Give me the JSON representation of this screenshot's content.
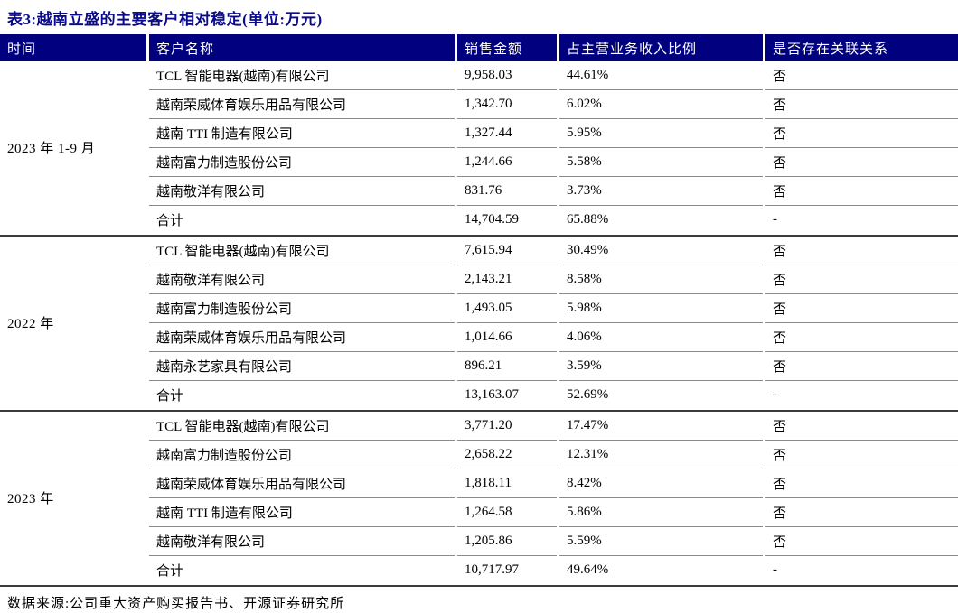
{
  "title": "表3:越南立盛的主要客户相对稳定(单位:万元)",
  "columns": [
    "时间",
    "客户名称",
    "销售金额",
    "占主营业务收入比例",
    "是否存在关联关系"
  ],
  "groups": [
    {
      "period": "2023 年 1-9 月",
      "rows": [
        {
          "customer": "TCL 智能电器(越南)有限公司",
          "amount": "9,958.03",
          "ratio": "44.61%",
          "related": "否"
        },
        {
          "customer": "越南荣威体育娱乐用品有限公司",
          "amount": "1,342.70",
          "ratio": "6.02%",
          "related": "否"
        },
        {
          "customer": "越南 TTI 制造有限公司",
          "amount": "1,327.44",
          "ratio": "5.95%",
          "related": "否"
        },
        {
          "customer": "越南富力制造股份公司",
          "amount": "1,244.66",
          "ratio": "5.58%",
          "related": "否"
        },
        {
          "customer": "越南敬洋有限公司",
          "amount": "831.76",
          "ratio": "3.73%",
          "related": "否"
        },
        {
          "customer": "合计",
          "amount": "14,704.59",
          "ratio": "65.88%",
          "related": "-"
        }
      ]
    },
    {
      "period": "2022 年",
      "rows": [
        {
          "customer": "TCL 智能电器(越南)有限公司",
          "amount": "7,615.94",
          "ratio": "30.49%",
          "related": "否"
        },
        {
          "customer": "越南敬洋有限公司",
          "amount": "2,143.21",
          "ratio": "8.58%",
          "related": "否"
        },
        {
          "customer": "越南富力制造股份公司",
          "amount": "1,493.05",
          "ratio": "5.98%",
          "related": "否"
        },
        {
          "customer": "越南荣威体育娱乐用品有限公司",
          "amount": "1,014.66",
          "ratio": "4.06%",
          "related": "否"
        },
        {
          "customer": "越南永艺家具有限公司",
          "amount": "896.21",
          "ratio": "3.59%",
          "related": "否"
        },
        {
          "customer": "合计",
          "amount": "13,163.07",
          "ratio": "52.69%",
          "related": "-"
        }
      ]
    },
    {
      "period": "2023 年",
      "rows": [
        {
          "customer": "TCL 智能电器(越南)有限公司",
          "amount": "3,771.20",
          "ratio": "17.47%",
          "related": "否"
        },
        {
          "customer": "越南富力制造股份公司",
          "amount": "2,658.22",
          "ratio": "12.31%",
          "related": "否"
        },
        {
          "customer": "越南荣威体育娱乐用品有限公司",
          "amount": "1,818.11",
          "ratio": "8.42%",
          "related": "否"
        },
        {
          "customer": "越南 TTI 制造有限公司",
          "amount": "1,264.58",
          "ratio": "5.86%",
          "related": "否"
        },
        {
          "customer": "越南敬洋有限公司",
          "amount": "1,205.86",
          "ratio": "5.59%",
          "related": "否"
        },
        {
          "customer": "合计",
          "amount": "10,717.97",
          "ratio": "49.64%",
          "related": "-"
        }
      ]
    }
  ],
  "footnote": "数据来源:公司重大资产购买报告书、开源证券研究所",
  "colors": {
    "header_bg": "#010180",
    "header_text": "#ffffff",
    "title_text": "#0b0b8a",
    "thin_rule": "#8a8a8a",
    "thick_rule": "#3c3c3c"
  }
}
